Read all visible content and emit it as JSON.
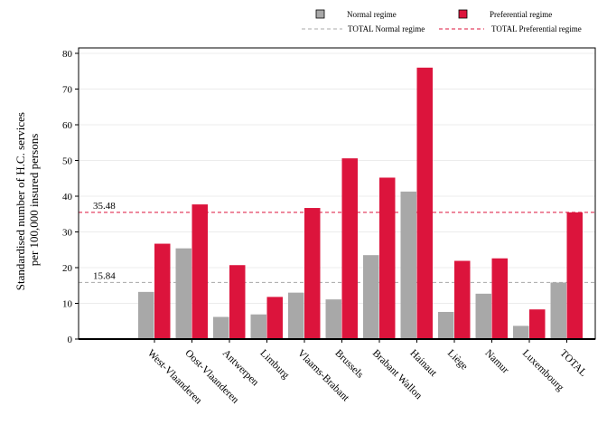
{
  "chart_data": {
    "type": "bar",
    "title": "",
    "xlabel": "",
    "ylabel_lines": [
      "Standardised number of H.C. services",
      "per 100,000 insured persons"
    ],
    "ylim": [
      0,
      80
    ],
    "yticks": [
      0,
      10,
      20,
      30,
      40,
      50,
      60,
      70,
      80
    ],
    "grid": true,
    "legend_position": "top-right",
    "categories": [
      "West-Vlaanderen",
      "Oost-Vlaanderen",
      "Antwerpen",
      "Limburg",
      "Vlaams-Brabant",
      "Brussels",
      "Brabant Wallon",
      "Hainaut",
      "Liège",
      "Namur",
      "Luxembourg",
      "TOTAL"
    ],
    "series": [
      {
        "name": "Normal regime",
        "color": "#a8a8a8",
        "values": [
          13.2,
          25.4,
          6.2,
          6.9,
          13.0,
          11.1,
          23.5,
          41.3,
          7.6,
          12.7,
          3.7,
          15.84
        ]
      },
      {
        "name": "Preferential regime",
        "color": "#dc143c",
        "values": [
          26.7,
          37.7,
          20.7,
          11.8,
          36.7,
          50.6,
          45.2,
          76.0,
          21.9,
          22.6,
          8.3,
          35.48
        ]
      }
    ],
    "reference_lines": [
      {
        "name": "TOTAL Normal regime",
        "value": 15.84,
        "label": "15.84",
        "color": "#a8a8a8"
      },
      {
        "name": "TOTAL Preferential regime",
        "value": 35.48,
        "label": "35.48",
        "color": "#dc143c"
      }
    ]
  }
}
